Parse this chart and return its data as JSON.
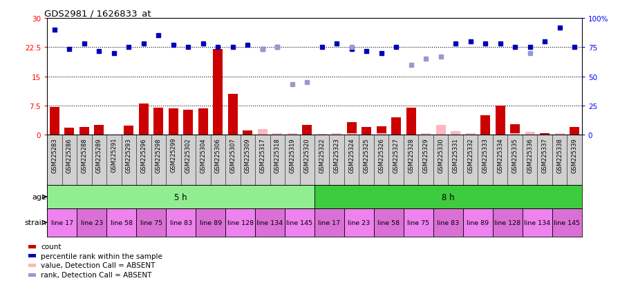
{
  "title": "GDS2981 / 1626833_at",
  "samples": [
    "GSM225283",
    "GSM225286",
    "GSM225288",
    "GSM225289",
    "GSM225291",
    "GSM225293",
    "GSM225296",
    "GSM225298",
    "GSM225299",
    "GSM225302",
    "GSM225304",
    "GSM225306",
    "GSM225307",
    "GSM225309",
    "GSM225317",
    "GSM225318",
    "GSM225319",
    "GSM225320",
    "GSM225322",
    "GSM225323",
    "GSM225324",
    "GSM225325",
    "GSM225326",
    "GSM225327",
    "GSM225328",
    "GSM225329",
    "GSM225330",
    "GSM225331",
    "GSM225332",
    "GSM225333",
    "GSM225334",
    "GSM225335",
    "GSM225336",
    "GSM225337",
    "GSM225338",
    "GSM225339"
  ],
  "count_present": [
    7.2,
    1.8,
    2.0,
    2.5,
    0.0,
    2.3,
    8.0,
    7.0,
    6.8,
    6.5,
    6.8,
    22.0,
    10.5,
    1.2,
    0.0,
    0.0,
    0.0,
    2.5,
    0.0,
    0.0,
    3.2,
    2.0,
    2.2,
    4.5,
    7.0,
    0.0,
    0.0,
    0.0,
    0.0,
    5.0,
    7.5,
    2.8,
    0.0,
    0.5,
    0.0,
    2.0
  ],
  "count_absent": [
    0.0,
    0.0,
    0.0,
    0.0,
    0.0,
    0.0,
    0.0,
    0.0,
    0.0,
    0.0,
    0.0,
    0.0,
    0.0,
    0.0,
    1.5,
    0.5,
    0.5,
    0.0,
    0.2,
    0.5,
    0.5,
    0.0,
    0.5,
    0.0,
    0.0,
    0.5,
    2.5,
    1.0,
    0.5,
    0.0,
    0.0,
    0.5,
    0.8,
    0.0,
    0.5,
    0.0
  ],
  "rank_present": [
    27.0,
    22.0,
    23.5,
    21.5,
    21.0,
    22.5,
    23.5,
    25.5,
    23.0,
    22.5,
    23.5,
    22.5,
    22.5,
    23.0,
    22.0,
    22.5,
    0.0,
    0.0,
    22.5,
    23.5,
    22.0,
    21.5,
    21.0,
    22.5,
    0.0,
    0.0,
    0.0,
    23.5,
    24.0,
    23.5,
    23.5,
    22.5,
    22.5,
    24.0,
    27.5,
    22.5
  ],
  "rank_absent": [
    0.0,
    0.0,
    0.0,
    0.0,
    0.0,
    0.0,
    0.0,
    0.0,
    0.0,
    0.0,
    0.0,
    0.0,
    0.0,
    0.0,
    22.0,
    22.5,
    13.0,
    13.5,
    0.0,
    0.0,
    22.5,
    0.0,
    0.0,
    0.0,
    18.0,
    19.5,
    20.0,
    0.0,
    0.0,
    0.0,
    0.0,
    0.0,
    21.0,
    0.0,
    0.0,
    0.0
  ],
  "age_groups": [
    {
      "label": "5 h",
      "start": 0,
      "end": 18,
      "color": "#90ee90"
    },
    {
      "label": "8 h",
      "start": 18,
      "end": 36,
      "color": "#3dcc3d"
    }
  ],
  "strain_groups": [
    {
      "label": "line 17",
      "start": 0,
      "end": 2,
      "color": "#ee82ee"
    },
    {
      "label": "line 23",
      "start": 2,
      "end": 4,
      "color": "#da70d6"
    },
    {
      "label": "line 58",
      "start": 4,
      "end": 6,
      "color": "#ee82ee"
    },
    {
      "label": "line 75",
      "start": 6,
      "end": 8,
      "color": "#da70d6"
    },
    {
      "label": "line 83",
      "start": 8,
      "end": 10,
      "color": "#ee82ee"
    },
    {
      "label": "line 89",
      "start": 10,
      "end": 12,
      "color": "#da70d6"
    },
    {
      "label": "line 128",
      "start": 12,
      "end": 14,
      "color": "#ee82ee"
    },
    {
      "label": "line 134",
      "start": 14,
      "end": 16,
      "color": "#da70d6"
    },
    {
      "label": "line 145",
      "start": 16,
      "end": 18,
      "color": "#ee82ee"
    },
    {
      "label": "line 17",
      "start": 18,
      "end": 20,
      "color": "#da70d6"
    },
    {
      "label": "line 23",
      "start": 20,
      "end": 22,
      "color": "#ee82ee"
    },
    {
      "label": "line 58",
      "start": 22,
      "end": 24,
      "color": "#da70d6"
    },
    {
      "label": "line 75",
      "start": 24,
      "end": 26,
      "color": "#ee82ee"
    },
    {
      "label": "line 83",
      "start": 26,
      "end": 28,
      "color": "#da70d6"
    },
    {
      "label": "line 89",
      "start": 28,
      "end": 30,
      "color": "#ee82ee"
    },
    {
      "label": "line 128",
      "start": 30,
      "end": 32,
      "color": "#da70d6"
    },
    {
      "label": "line 134",
      "start": 32,
      "end": 34,
      "color": "#ee82ee"
    },
    {
      "label": "line 145",
      "start": 34,
      "end": 36,
      "color": "#da70d6"
    }
  ],
  "ylim_left": [
    0,
    30
  ],
  "ylim_right": [
    0,
    100
  ],
  "yticks_left": [
    0,
    7.5,
    15,
    22.5,
    30
  ],
  "yticks_right": [
    0,
    25,
    50,
    75,
    100
  ],
  "ytick_labels_left": [
    "0",
    "7.5",
    "15",
    "22.5",
    "30"
  ],
  "ytick_labels_right": [
    "0",
    "25",
    "50",
    "75",
    "100%"
  ],
  "hlines": [
    7.5,
    15,
    22.5
  ],
  "bar_color_present": "#cc0000",
  "bar_color_absent": "#ffb6c1",
  "marker_color_present": "#0000bb",
  "marker_color_absent": "#9999cc",
  "label_bg": "#d0d0d0",
  "plot_bg": "#ffffff"
}
